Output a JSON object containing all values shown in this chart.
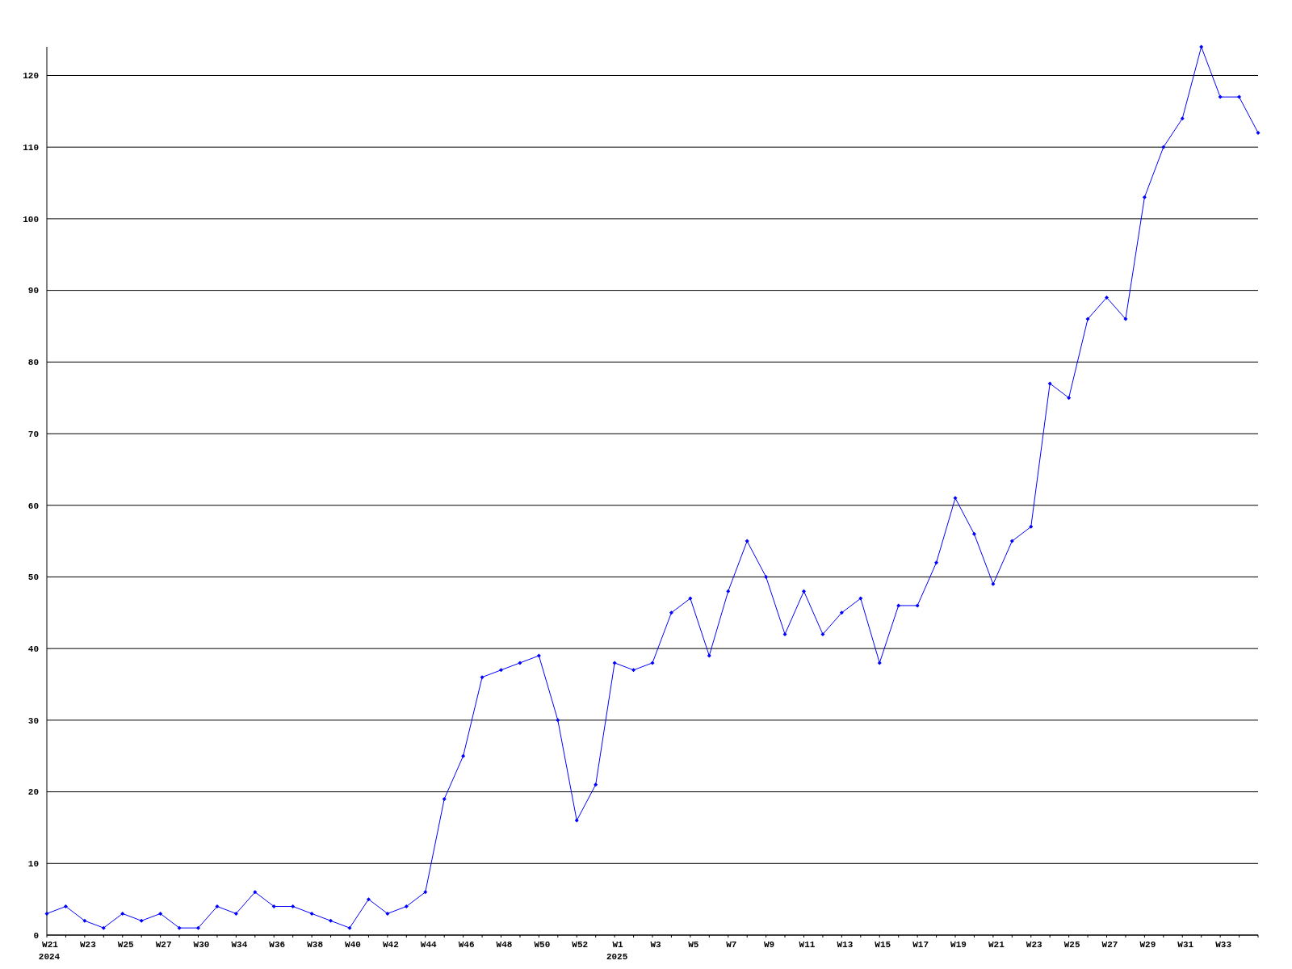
{
  "chart_data": {
    "type": "line",
    "categories": [
      "W21\n2024",
      null,
      "W23",
      null,
      "W25",
      null,
      "W27",
      null,
      "W30",
      null,
      "W34",
      null,
      "W36",
      null,
      "W38",
      null,
      "W40",
      null,
      "W42",
      null,
      "W44",
      null,
      "W46",
      null,
      "W48",
      null,
      "W50",
      null,
      "W52",
      null,
      "W1\n2025",
      null,
      "W3",
      null,
      "W5",
      null,
      "W7",
      null,
      "W9",
      null,
      "W11",
      null,
      "W13",
      null,
      "W15",
      null,
      "W17",
      null,
      "W19",
      null,
      "W21",
      null,
      "W23",
      null,
      "W25",
      null,
      "W27",
      null,
      "W29",
      null,
      "W31",
      null,
      "W33",
      null,
      null
    ],
    "series": [
      {
        "color": "#0000ff",
        "values": [
          3,
          4,
          2,
          1,
          3,
          2,
          3,
          1,
          1,
          4,
          3,
          6,
          4,
          4,
          3,
          2,
          1,
          5,
          3,
          4,
          6,
          19,
          25,
          36,
          37,
          38,
          39,
          30,
          16,
          21,
          38,
          37,
          38,
          45,
          47,
          39,
          48,
          55,
          50,
          42,
          48,
          42,
          45,
          47,
          38,
          46,
          46,
          52,
          61,
          56,
          49,
          55,
          57,
          77,
          75,
          86,
          89,
          86,
          103,
          110,
          114,
          124,
          117,
          117,
          112
        ]
      }
    ],
    "ylim": [
      0,
      124
    ],
    "yticks": [
      0,
      10,
      20,
      30,
      40,
      50,
      60,
      70,
      80,
      90,
      100,
      110,
      120
    ],
    "grid": "y",
    "marker": "diamond",
    "line_style": "solid"
  }
}
